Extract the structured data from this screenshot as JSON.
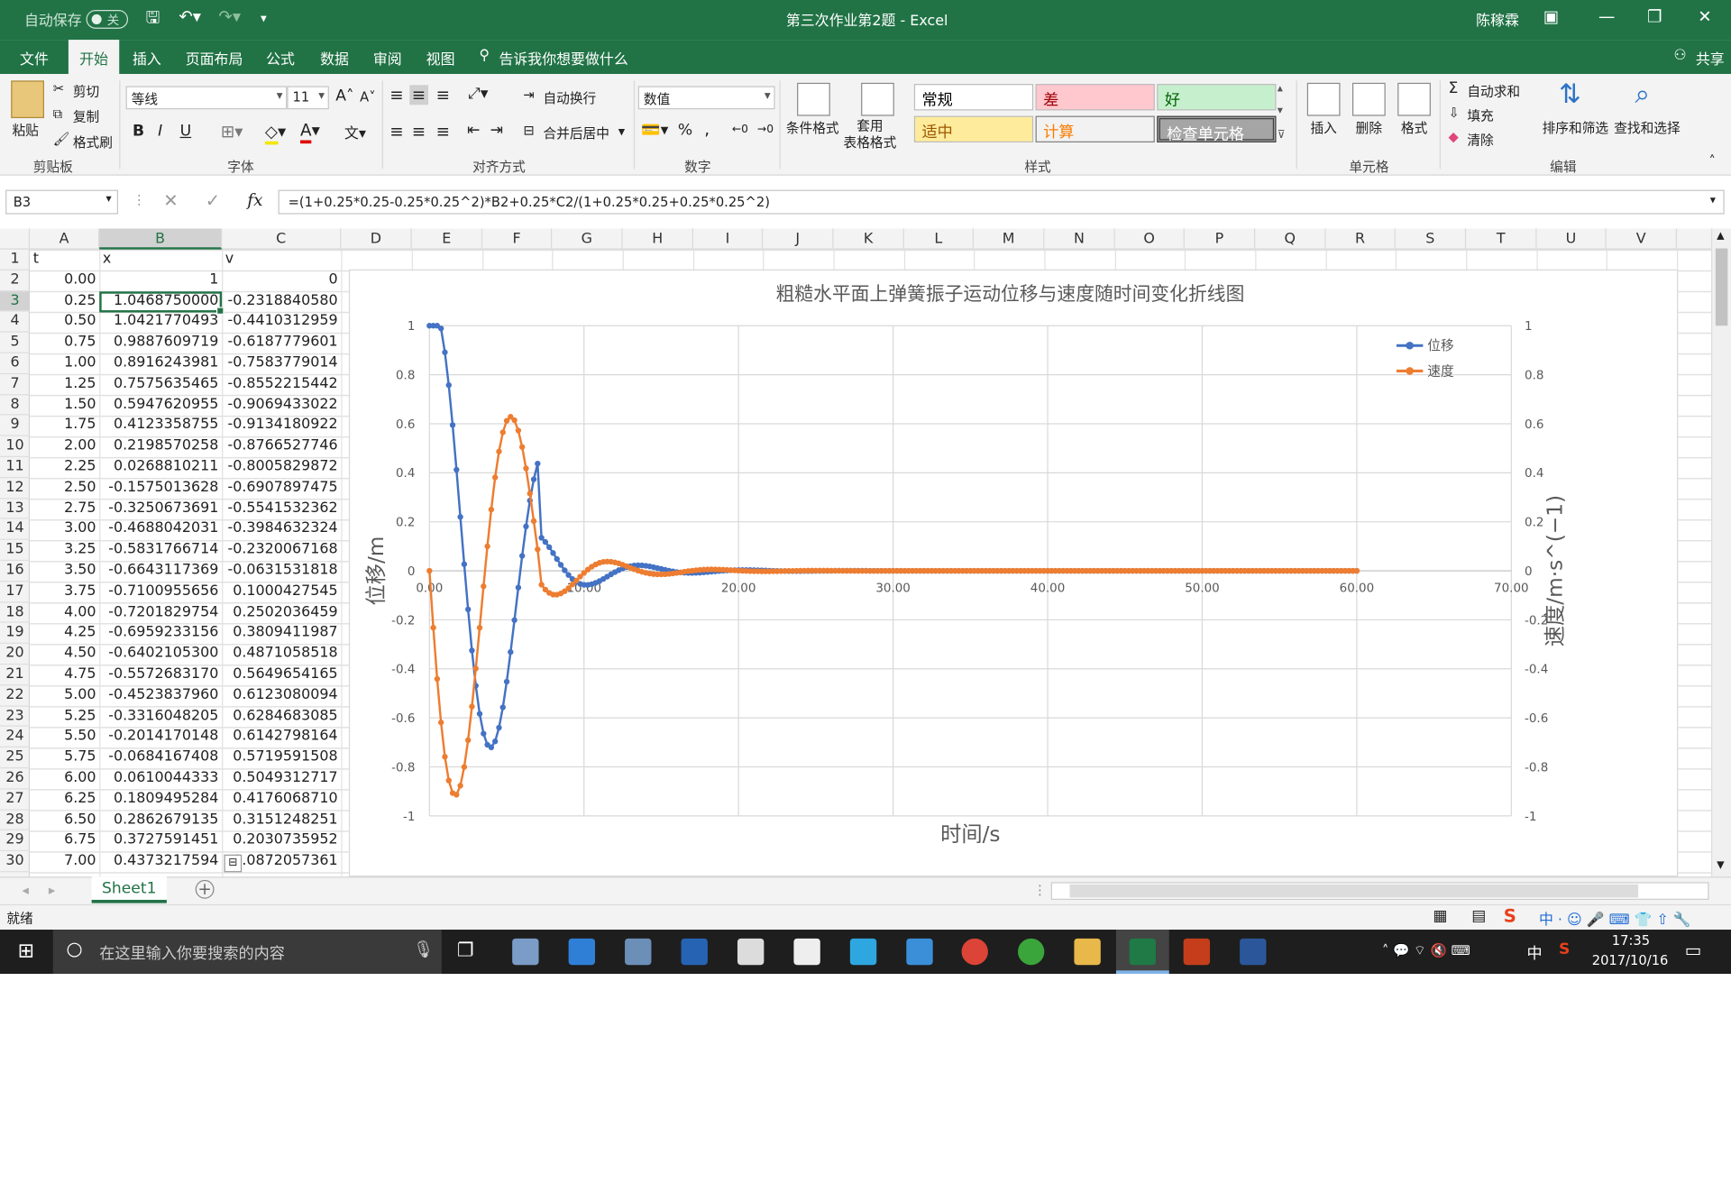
{
  "titlebar": {
    "autosave_label": "自动保存",
    "autosave_state": "关",
    "doc_title": "第三次作业第2题  -  Excel",
    "user_name": "陈稼霖"
  },
  "menu": {
    "tabs": [
      "文件",
      "开始",
      "插入",
      "页面布局",
      "公式",
      "数据",
      "审阅",
      "视图"
    ],
    "active_tab": "开始",
    "tell_me": "告诉我你想要做什么",
    "share": "共享"
  },
  "ribbon": {
    "clipboard": {
      "paste": "粘贴",
      "cut": "剪切",
      "copy": "复制",
      "format_painter": "格式刷",
      "label": "剪贴板"
    },
    "font": {
      "name": "等线",
      "size": "11",
      "bold": "B",
      "italic": "I",
      "underline": "U",
      "label": "字体"
    },
    "alignment": {
      "wrap": "自动换行",
      "merge": "合并后居中",
      "label": "对齐方式"
    },
    "number": {
      "format": "数值",
      "percent": "%",
      "comma": ",",
      "label": "数字"
    },
    "styles": {
      "conditional": "条件格式",
      "table": "套用\n表格格式",
      "cells": [
        "常规",
        "差",
        "好",
        "适中",
        "计算",
        "检查单元格"
      ],
      "label": "样式"
    },
    "cells_group": {
      "insert": "插入",
      "delete": "删除",
      "format": "格式",
      "label": "单元格"
    },
    "editing": {
      "autosum": "自动求和",
      "fill": "填充",
      "clear": "清除",
      "sort": "排序和筛选",
      "find": "查找和选择",
      "label": "编辑"
    }
  },
  "formula_bar": {
    "name_box": "B3",
    "fx": "fx",
    "formula": "=(1+0.25*0.25-0.25*0.25^2)*B2+0.25*C2/(1+0.25*0.25+0.25*0.25^2)"
  },
  "columns": [
    "A",
    "B",
    "C",
    "D",
    "E",
    "F",
    "G",
    "H",
    "I",
    "J",
    "K",
    "L",
    "M",
    "N",
    "O",
    "P",
    "Q",
    "R",
    "S",
    "T",
    "U",
    "V"
  ],
  "rows": [
    {
      "n": "1",
      "a": "t",
      "b": "x",
      "c": "v"
    },
    {
      "n": "2",
      "a": "0.00",
      "b": "1",
      "c": "0"
    },
    {
      "n": "3",
      "a": "0.25",
      "b": "1.0468750000",
      "c": "-0.2318840580"
    },
    {
      "n": "4",
      "a": "0.50",
      "b": "1.0421770493",
      "c": "-0.4410312959"
    },
    {
      "n": "5",
      "a": "0.75",
      "b": "0.9887609719",
      "c": "-0.6187779601"
    },
    {
      "n": "6",
      "a": "1.00",
      "b": "0.8916243981",
      "c": "-0.7583779014"
    },
    {
      "n": "7",
      "a": "1.25",
      "b": "0.7575635465",
      "c": "-0.8552215442"
    },
    {
      "n": "8",
      "a": "1.50",
      "b": "0.5947620955",
      "c": "-0.9069433022"
    },
    {
      "n": "9",
      "a": "1.75",
      "b": "0.4123358755",
      "c": "-0.9134180922"
    },
    {
      "n": "10",
      "a": "2.00",
      "b": "0.2198570258",
      "c": "-0.8766527746"
    },
    {
      "n": "11",
      "a": "2.25",
      "b": "0.0268810211",
      "c": "-0.8005829872"
    },
    {
      "n": "12",
      "a": "2.50",
      "b": "-0.1575013628",
      "c": "-0.6907897475"
    },
    {
      "n": "13",
      "a": "2.75",
      "b": "-0.3250673691",
      "c": "-0.5541532362"
    },
    {
      "n": "14",
      "a": "3.00",
      "b": "-0.4688042031",
      "c": "-0.3984632324"
    },
    {
      "n": "15",
      "a": "3.25",
      "b": "-0.5831766714",
      "c": "-0.2320067168"
    },
    {
      "n": "16",
      "a": "3.50",
      "b": "-0.6643117369",
      "c": "-0.0631531818"
    },
    {
      "n": "17",
      "a": "3.75",
      "b": "-0.7100955656",
      "c": "0.1000427545"
    },
    {
      "n": "18",
      "a": "4.00",
      "b": "-0.7201829754",
      "c": "0.2502036459"
    },
    {
      "n": "19",
      "a": "4.25",
      "b": "-0.6959233156",
      "c": "0.3809411987"
    },
    {
      "n": "20",
      "a": "4.50",
      "b": "-0.6402105300",
      "c": "0.4871058518"
    },
    {
      "n": "21",
      "a": "4.75",
      "b": "-0.5572683170",
      "c": "0.5649654165"
    },
    {
      "n": "22",
      "a": "5.00",
      "b": "-0.4523837960",
      "c": "0.6123080094"
    },
    {
      "n": "23",
      "a": "5.25",
      "b": "-0.3316048205",
      "c": "0.6284683085"
    },
    {
      "n": "24",
      "a": "5.50",
      "b": "-0.2014170148",
      "c": "0.6142798164"
    },
    {
      "n": "25",
      "a": "5.75",
      "b": "-0.0684167408",
      "c": "0.5719591508"
    },
    {
      "n": "26",
      "a": "6.00",
      "b": "0.0610044333",
      "c": "0.5049312717"
    },
    {
      "n": "27",
      "a": "6.25",
      "b": "0.1809495284",
      "c": "0.4176068710"
    },
    {
      "n": "28",
      "a": "6.50",
      "b": "0.2862679135",
      "c": "0.3151248251"
    },
    {
      "n": "29",
      "a": "6.75",
      "b": "0.3727591451",
      "c": "0.2030735952"
    },
    {
      "n": "30",
      "a": "7.00",
      "b": "0.4373217594",
      "c": "0.0872057361"
    }
  ],
  "chart_data": {
    "type": "line",
    "title": "粗糙水平面上弹簧振子运动位移与速度随时间变化折线图",
    "xlabel": "时间/s",
    "ylabel": "位移/m",
    "y2label": "速度/m·s^(−1)",
    "xlim": [
      0,
      70
    ],
    "ylim": [
      -1,
      1
    ],
    "y2lim": [
      -1,
      1
    ],
    "x_ticks": [
      "0.00",
      "10.00",
      "20.00",
      "30.00",
      "40.00",
      "50.00",
      "60.00",
      "70.00"
    ],
    "y_ticks": [
      "1",
      "0.8",
      "0.6",
      "0.4",
      "0.2",
      "0",
      "-0.2",
      "-0.4",
      "-0.6",
      "-0.8",
      "-1"
    ],
    "legend_position": "top-right",
    "grid": true,
    "model": {
      "dt": 0.25,
      "t_end": 60,
      "x0": 1,
      "v0": 0
    },
    "series": [
      {
        "name": "位移",
        "color": "#4472C4",
        "axis": "left"
      },
      {
        "name": "速度",
        "color": "#ED7D31",
        "axis": "right"
      }
    ],
    "sample_points": {
      "t": [
        0.0,
        0.25,
        0.5,
        0.75,
        1.0,
        1.25,
        1.5,
        1.75,
        2.0,
        2.25,
        2.5,
        2.75,
        3.0,
        3.25,
        3.5,
        3.75,
        4.0,
        4.25,
        4.5,
        4.75,
        5.0,
        5.25,
        5.5,
        5.75,
        6.0,
        6.25,
        6.5,
        6.75,
        7.0
      ],
      "x": [
        1,
        1.046875,
        1.0421770493,
        0.9887609719,
        0.8916243981,
        0.7575635465,
        0.5947620955,
        0.4123358755,
        0.2198570258,
        0.0268810211,
        -0.1575013628,
        -0.3250673691,
        -0.4688042031,
        -0.5831766714,
        -0.6643117369,
        -0.7100955656,
        -0.7201829754,
        -0.6959233156,
        -0.64021053,
        -0.557268317,
        -0.452383796,
        -0.3316048205,
        -0.2014170148,
        -0.0684167408,
        0.0610044333,
        0.1809495284,
        0.2862679135,
        0.3727591451,
        0.4373217594
      ],
      "v": [
        0,
        -0.231884058,
        -0.4410312959,
        -0.6187779601,
        -0.7583779014,
        -0.8552215442,
        -0.9069433022,
        -0.9134180922,
        -0.8766527746,
        -0.8005829872,
        -0.6907897475,
        -0.5541532362,
        -0.3984632324,
        -0.2320067168,
        -0.0631531818,
        0.1000427545,
        0.2502036459,
        0.3809411987,
        0.4871058518,
        0.5649654165,
        0.6123080094,
        0.6284683085,
        0.6142798164,
        0.5719591508,
        0.5049312717,
        0.417606871,
        0.3151248251,
        0.2030735952,
        0.0872057361
      ]
    }
  },
  "sheet": {
    "tab": "Sheet1",
    "status": "就绪"
  },
  "taskbar": {
    "search_placeholder": "在这里输入你要搜索的内容",
    "time": "17:35",
    "date": "2017/10/16",
    "ime": "中"
  }
}
